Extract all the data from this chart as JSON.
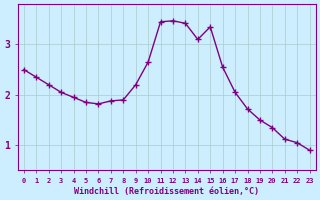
{
  "x": [
    0,
    1,
    2,
    3,
    4,
    5,
    6,
    7,
    8,
    9,
    10,
    11,
    12,
    13,
    14,
    15,
    16,
    17,
    18,
    19,
    20,
    21,
    22,
    23
  ],
  "y": [
    2.5,
    2.35,
    2.2,
    2.05,
    1.95,
    1.85,
    1.82,
    1.88,
    1.9,
    2.2,
    2.65,
    3.45,
    3.47,
    3.42,
    3.1,
    3.35,
    2.55,
    2.05,
    1.72,
    1.5,
    1.35,
    1.12,
    1.05,
    0.9
  ],
  "line_color": "#800080",
  "marker": "+",
  "marker_size": 5,
  "bg_color": "#cceeff",
  "grid_color": "#aacccc",
  "xlabel": "Windchill (Refroidissement éolien,°C)",
  "yticks": [
    1,
    2,
    3
  ],
  "xticks": [
    0,
    1,
    2,
    3,
    4,
    5,
    6,
    7,
    8,
    9,
    10,
    11,
    12,
    13,
    14,
    15,
    16,
    17,
    18,
    19,
    20,
    21,
    22,
    23
  ],
  "xlim": [
    -0.5,
    23.5
  ],
  "ylim": [
    0.5,
    3.8
  ],
  "tick_color": "#800080",
  "spine_color": "#800080"
}
